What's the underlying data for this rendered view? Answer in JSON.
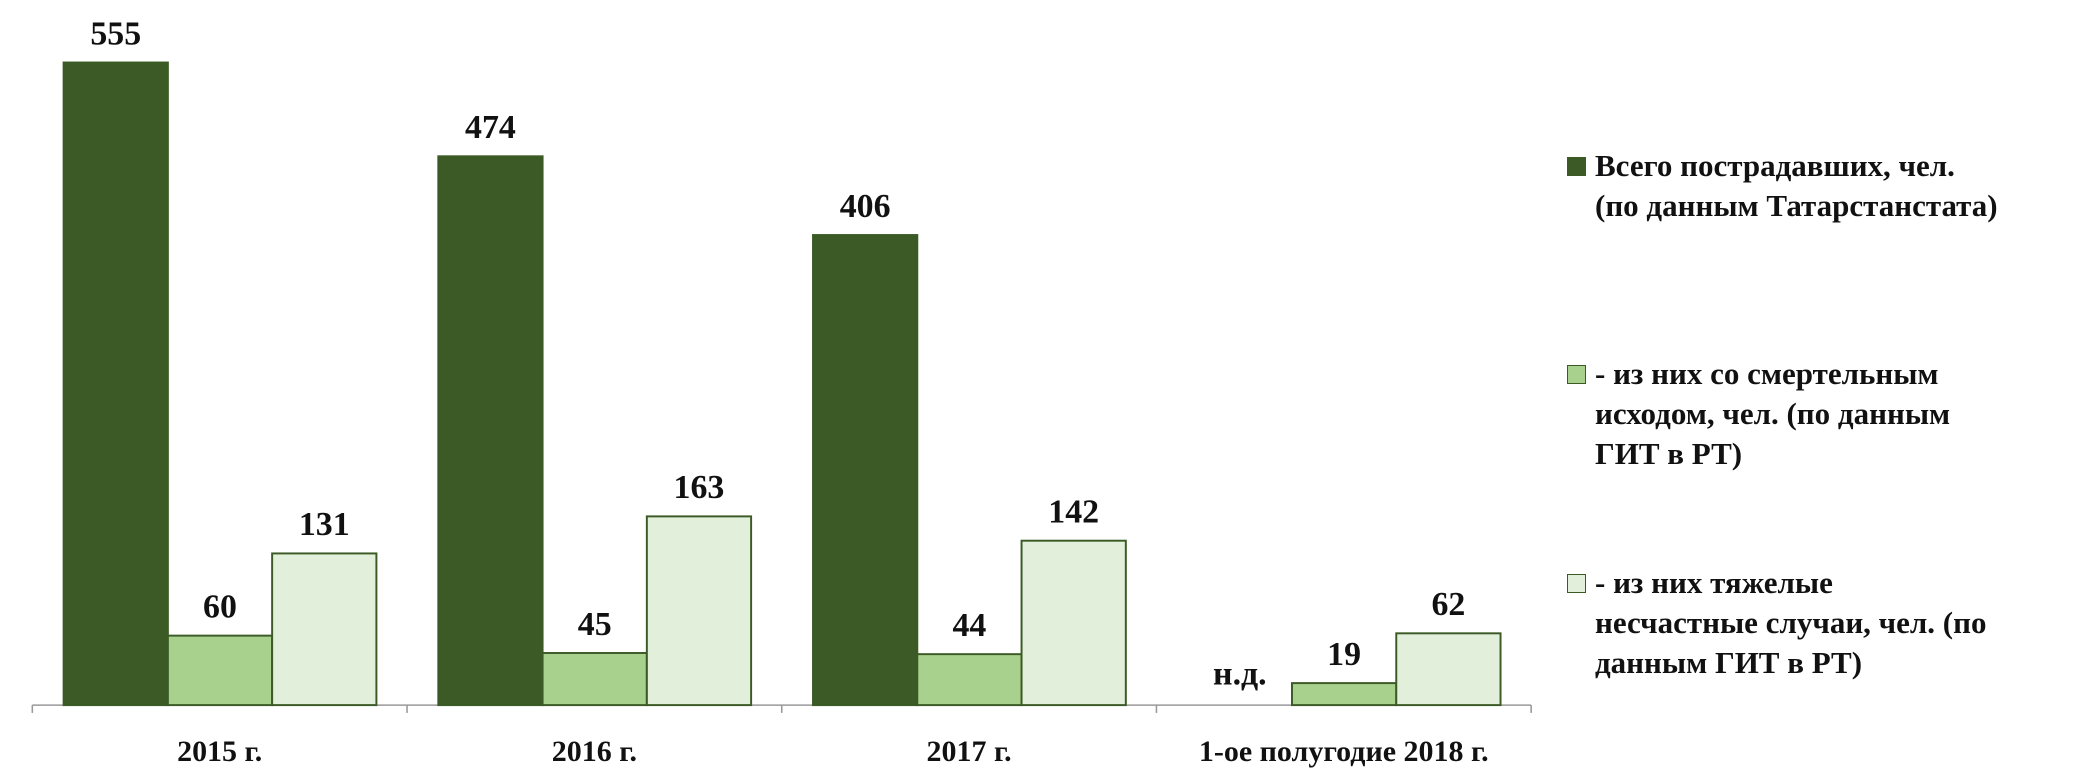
{
  "chart_data": {
    "type": "bar",
    "categories": [
      "2015 г.",
      "2016 г.",
      "2017 г.",
      "1-ое полугодие 2018 г."
    ],
    "series": [
      {
        "name": "Всего пострадавших, чел.\n(по данным Татарстанстата)",
        "color": "#3b5a25",
        "values": [
          555,
          474,
          406,
          null
        ],
        "value_labels": [
          "555",
          "474",
          "406",
          "н.д."
        ]
      },
      {
        "name": " - из них со смертельным\nисходом, чел. (по данным\nГИТ в РТ)",
        "color": "#a9d18e",
        "values": [
          60,
          45,
          44,
          19
        ]
      },
      {
        "name": " - из них тяжелые\nнесчастные случаи, чел. (по\nданным ГИТ в РТ)",
        "color": "#e2efda",
        "values": [
          131,
          163,
          142,
          62
        ]
      }
    ],
    "ylim": [
      0,
      600
    ],
    "legend": "right"
  }
}
